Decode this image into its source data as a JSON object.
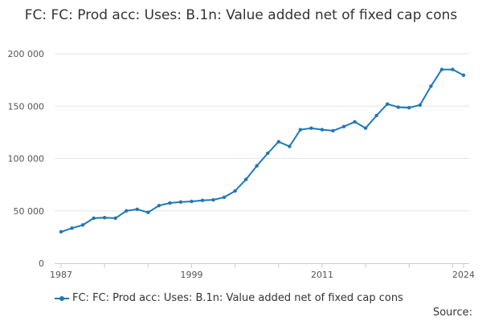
{
  "chart_data": {
    "type": "line",
    "title": "FC: FC: Prod acc: Uses: B.1n: Value added net of fixed cap cons",
    "xlabel": "",
    "ylabel": "",
    "x": [
      1987,
      1988,
      1989,
      1990,
      1991,
      1992,
      1993,
      1994,
      1995,
      1996,
      1997,
      1998,
      1999,
      2000,
      2001,
      2002,
      2003,
      2004,
      2005,
      2006,
      2007,
      2008,
      2009,
      2010,
      2011,
      2012,
      2013,
      2014,
      2015,
      2016,
      2017,
      2018,
      2019,
      2020,
      2021,
      2022,
      2023,
      2024
    ],
    "x_tick_labels": [
      "1987",
      "1999",
      "2011",
      "2024"
    ],
    "y_tick_labels": [
      "0",
      "50 000",
      "100 000",
      "150 000",
      "200 000"
    ],
    "ylim": [
      0,
      200000
    ],
    "grid": true,
    "legend_position": "bottom",
    "series": [
      {
        "name": "FC: FC: Prod acc: Uses: B.1n: Value added net of fixed cap cons",
        "color": "#1f78b4",
        "values": [
          30000,
          33500,
          36500,
          43000,
          43500,
          43000,
          50000,
          51500,
          48500,
          55000,
          57500,
          58500,
          59000,
          60000,
          60500,
          63000,
          69000,
          80000,
          93000,
          105000,
          116000,
          111500,
          127500,
          129000,
          127500,
          126500,
          130500,
          135000,
          129000,
          141000,
          152000,
          149000,
          148500,
          151000,
          169000,
          185000,
          185000,
          179500
        ]
      }
    ]
  },
  "legend": {
    "label": "FC: FC: Prod acc: Uses: B.1n: Value added net of fixed cap cons"
  },
  "source": {
    "label": "Source:"
  }
}
